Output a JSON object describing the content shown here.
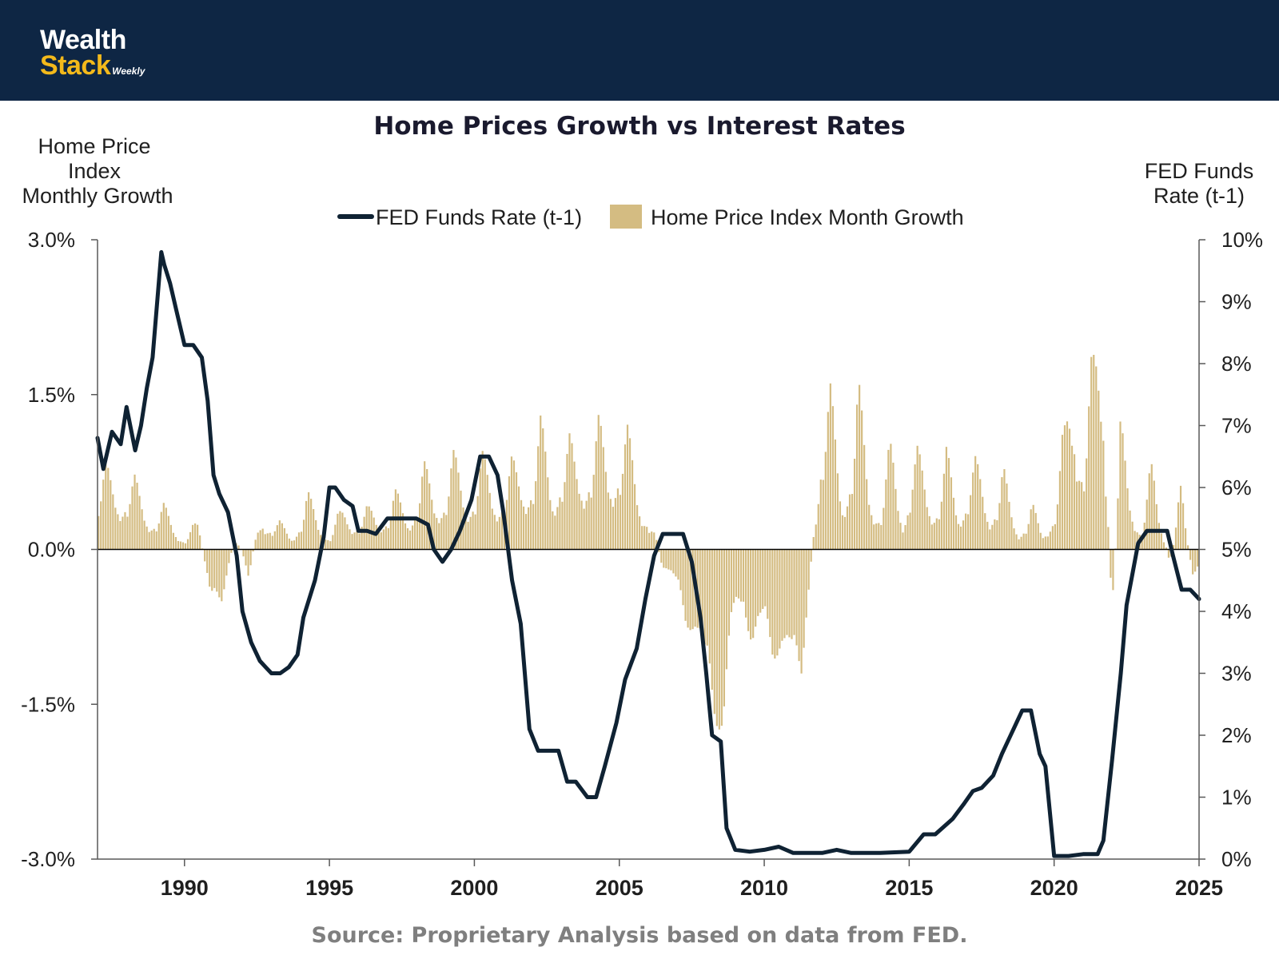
{
  "brand": {
    "name_top": "Wealth",
    "name_bottom": "Stack",
    "tagline": "Weekly"
  },
  "source_note": "Source: Proprietary Analysis based on data from FED.",
  "chart_data": {
    "type": "bar+line",
    "title": "Home Prices Growth vs Interest Rates",
    "left_axis_title": [
      "Home Price",
      "Index",
      "Monthly Growth"
    ],
    "right_axis_title": [
      "FED Funds",
      "Rate (t-1)"
    ],
    "left_ylim": [
      -3.0,
      3.0
    ],
    "left_ticks": [
      3.0,
      1.5,
      0.0,
      -1.5,
      -3.0
    ],
    "left_tick_labels": [
      "3.0%",
      "1.5%",
      "0.0%",
      "-1.5%",
      "-3.0%"
    ],
    "right_ylim": [
      0,
      10
    ],
    "right_ticks": [
      10,
      9,
      8,
      7,
      6,
      5,
      4,
      3,
      2,
      1,
      0
    ],
    "right_tick_labels": [
      "10%",
      "9%",
      "8%",
      "7%",
      "6%",
      "5%",
      "4%",
      "3%",
      "2%",
      "1%",
      "0%"
    ],
    "xlim": [
      1987.0,
      2025.0
    ],
    "x_ticks": [
      1990,
      1995,
      2000,
      2005,
      2010,
      2015,
      2020,
      2025
    ],
    "x_tick_labels": [
      "1990",
      "1995",
      "2000",
      "2005",
      "2010",
      "2015",
      "2020",
      "2025"
    ],
    "legend": {
      "placement": "top-center",
      "line_label": "FED Funds Rate (t-1)",
      "bar_label": "Home Price Index Month Growth"
    },
    "colors": {
      "line": "#0f2233",
      "bar": "#d4bc82",
      "zero_line": "#000000",
      "axis": "#595959"
    },
    "series": [
      {
        "name": "FED Funds Rate (t-1)",
        "type": "line",
        "axis": "right",
        "x": [
          1987.0,
          1987.2,
          1987.5,
          1987.8,
          1988.0,
          1988.3,
          1988.5,
          1988.7,
          1988.9,
          1989.2,
          1989.3,
          1989.5,
          1989.7,
          1990.0,
          1990.3,
          1990.6,
          1990.8,
          1991.0,
          1991.2,
          1991.5,
          1991.8,
          1992.0,
          1992.3,
          1992.6,
          1992.8,
          1993.0,
          1993.3,
          1993.6,
          1993.9,
          1994.1,
          1994.5,
          1994.8,
          1995.0,
          1995.2,
          1995.5,
          1995.8,
          1996.0,
          1996.3,
          1996.6,
          1997.0,
          1997.5,
          1998.0,
          1998.4,
          1998.6,
          1998.9,
          1999.2,
          1999.5,
          1999.9,
          2000.2,
          2000.5,
          2000.8,
          2001.0,
          2001.3,
          2001.6,
          2001.9,
          2002.2,
          2002.6,
          2002.9,
          2003.2,
          2003.5,
          2003.9,
          2004.2,
          2004.5,
          2004.9,
          2005.2,
          2005.6,
          2005.9,
          2006.2,
          2006.5,
          2006.8,
          2007.2,
          2007.5,
          2007.8,
          2008.0,
          2008.2,
          2008.5,
          2008.7,
          2009.0,
          2009.5,
          2010.0,
          2010.5,
          2011.0,
          2011.5,
          2012.0,
          2012.5,
          2013.0,
          2014.0,
          2015.0,
          2015.5,
          2015.9,
          2016.5,
          2016.9,
          2017.2,
          2017.5,
          2017.9,
          2018.2,
          2018.5,
          2018.9,
          2019.2,
          2019.5,
          2019.7,
          2020.0,
          2020.5,
          2021.0,
          2021.5,
          2021.7,
          2022.0,
          2022.3,
          2022.5,
          2022.7,
          2022.9,
          2023.2,
          2023.5,
          2023.9,
          2024.1,
          2024.4,
          2024.7,
          2025.0
        ],
        "values": [
          6.8,
          6.3,
          6.9,
          6.7,
          7.3,
          6.6,
          7.0,
          7.6,
          8.1,
          9.8,
          9.6,
          9.3,
          8.9,
          8.3,
          8.3,
          8.1,
          7.4,
          6.2,
          5.9,
          5.6,
          4.9,
          4.0,
          3.5,
          3.2,
          3.1,
          3.0,
          3.0,
          3.1,
          3.3,
          3.9,
          4.5,
          5.2,
          6.0,
          6.0,
          5.8,
          5.7,
          5.3,
          5.3,
          5.25,
          5.5,
          5.5,
          5.5,
          5.4,
          5.0,
          4.8,
          5.0,
          5.3,
          5.8,
          6.5,
          6.5,
          6.2,
          5.6,
          4.5,
          3.8,
          2.1,
          1.75,
          1.75,
          1.75,
          1.25,
          1.25,
          1.0,
          1.0,
          1.5,
          2.2,
          2.9,
          3.4,
          4.2,
          4.9,
          5.25,
          5.25,
          5.25,
          4.8,
          3.9,
          3.0,
          2.0,
          1.9,
          0.5,
          0.15,
          0.12,
          0.15,
          0.2,
          0.1,
          0.1,
          0.1,
          0.15,
          0.1,
          0.1,
          0.12,
          0.4,
          0.4,
          0.65,
          0.9,
          1.1,
          1.15,
          1.35,
          1.7,
          2.0,
          2.4,
          2.4,
          1.7,
          1.5,
          0.05,
          0.05,
          0.08,
          0.08,
          0.3,
          1.6,
          3.0,
          4.1,
          4.6,
          5.1,
          5.3,
          5.3,
          5.3,
          4.9,
          4.35,
          4.35,
          4.2
        ]
      },
      {
        "name": "Home Price Index Month Growth",
        "type": "bar",
        "axis": "left",
        "anchors_x": [
          1987.0,
          1987.5,
          1988.0,
          1988.5,
          1988.9,
          1989.3,
          1989.7,
          1990.0,
          1990.5,
          1990.9,
          1991.3,
          1991.8,
          1992.2,
          1992.7,
          1993.2,
          1993.7,
          1994.2,
          1994.6,
          1995.0,
          1995.6,
          1996.2,
          1996.7,
          1997.2,
          1997.7,
          1998.2,
          1998.6,
          1999.2,
          1999.7,
          2000.2,
          2000.6,
          2001.0,
          2001.5,
          2002.0,
          2002.3,
          2002.7,
          2003.0,
          2003.5,
          2004.0,
          2004.3,
          2004.6,
          2005.0,
          2005.3,
          2005.7,
          2006.0,
          2006.5,
          2007.0,
          2007.5,
          2007.9,
          2008.3,
          2008.6,
          2008.9,
          2009.3,
          2009.6,
          2010.0,
          2010.4,
          2010.8,
          2011.3,
          2011.6,
          2012.0,
          2012.3,
          2012.7,
          2013.2,
          2013.6,
          2014.0,
          2014.4,
          2014.8,
          2015.1,
          2015.5,
          2015.9,
          2016.3,
          2016.7,
          2017.1,
          2017.5,
          2017.8,
          2018.2,
          2018.5,
          2018.8,
          2019.2,
          2019.6,
          2020.0,
          2020.4,
          2020.7,
          2021.0,
          2021.4,
          2021.7,
          2022.0,
          2022.3,
          2022.6,
          2023.0,
          2023.4,
          2023.7,
          2024.0,
          2024.4,
          2024.8,
          2025.0
        ],
        "anchors_amp": [
          0.9,
          0.8,
          0.9,
          0.6,
          0.5,
          0.45,
          0.3,
          0.15,
          0.3,
          -0.6,
          -0.5,
          0.2,
          -0.3,
          0.5,
          0.3,
          0.2,
          0.6,
          0.4,
          0.2,
          0.5,
          0.4,
          0.5,
          0.6,
          0.5,
          0.9,
          0.7,
          1.0,
          0.8,
          1.0,
          0.8,
          0.9,
          0.9,
          1.2,
          1.3,
          0.9,
          1.3,
          1.0,
          1.4,
          1.3,
          1.1,
          1.5,
          1.2,
          0.8,
          0.5,
          -0.2,
          -0.4,
          -0.9,
          -1.3,
          -1.6,
          -2.2,
          -0.8,
          -0.5,
          -1.2,
          -0.8,
          -1.1,
          -1.3,
          -1.2,
          -0.3,
          1.9,
          1.6,
          0.8,
          1.8,
          0.9,
          0.6,
          1.1,
          0.5,
          1.1,
          0.9,
          0.7,
          1.0,
          0.6,
          1.0,
          0.8,
          0.6,
          0.9,
          0.5,
          0.3,
          0.5,
          0.2,
          0.6,
          1.3,
          2.3,
          1.5,
          2.0,
          2.7,
          -0.9,
          1.3,
          0.8,
          0.3,
          0.9,
          0.4,
          -0.2,
          0.7,
          -0.4,
          -0.2
        ],
        "points_per_year": 12,
        "note": "Monthly values reconstructed: each month = envelope(anchor) × seasonal factor"
      }
    ]
  }
}
